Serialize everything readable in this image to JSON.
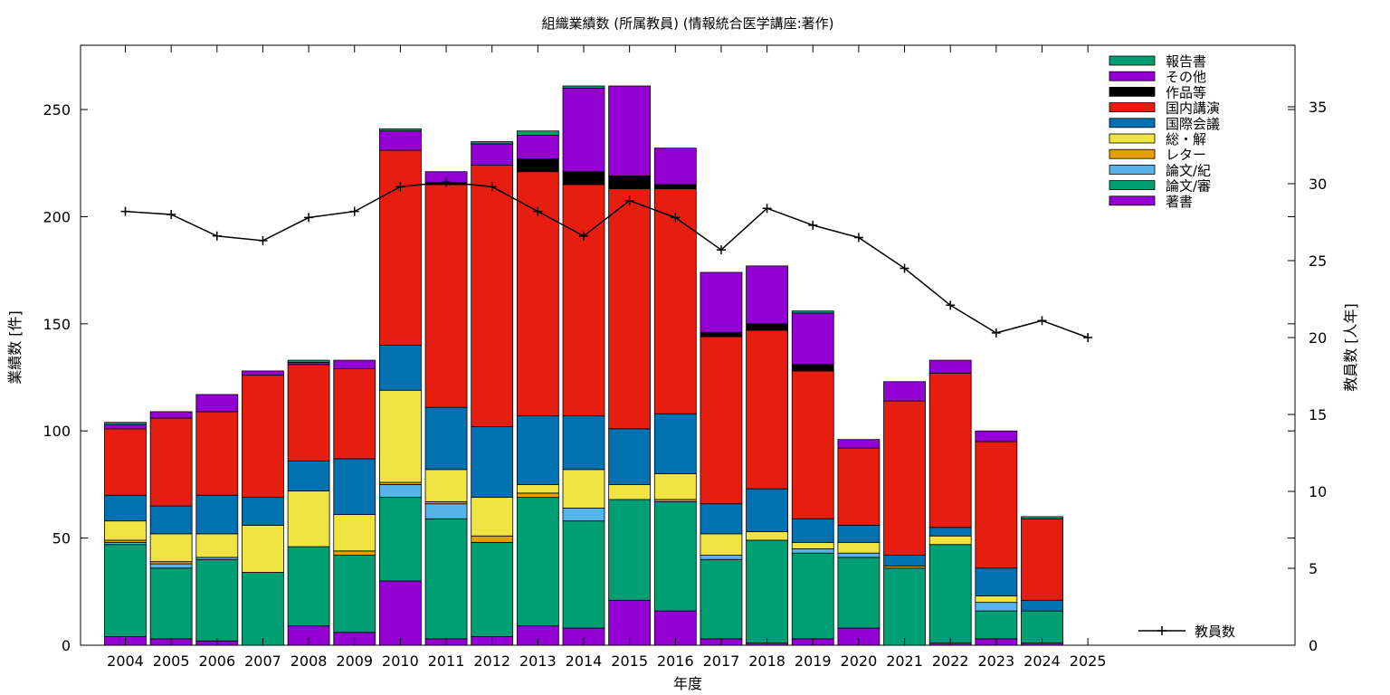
{
  "chart_data": {
    "type": "bar",
    "stacked": true,
    "title": "組織業績数 (所属教員) (情報統合医学講座:著作)",
    "xlabel": "年度",
    "ylabel": "業績数 [件]",
    "y2label": "教員数 [人年]",
    "ylim": [
      0,
      280
    ],
    "y2lim": [
      0,
      39
    ],
    "yticks": [
      0,
      50,
      100,
      150,
      200,
      250
    ],
    "y2ticks": [
      0,
      5,
      10,
      15,
      20,
      25,
      30,
      35
    ],
    "grid": false,
    "legend_position": "top-right",
    "categories": [
      "2004",
      "2005",
      "2006",
      "2007",
      "2008",
      "2009",
      "2010",
      "2011",
      "2012",
      "2013",
      "2014",
      "2015",
      "2016",
      "2017",
      "2018",
      "2019",
      "2020",
      "2021",
      "2022",
      "2023",
      "2024",
      "2025"
    ],
    "series": [
      {
        "name": "著書",
        "color": "#9400d3",
        "values": [
          4,
          3,
          2,
          0,
          9,
          6,
          30,
          3,
          4,
          9,
          8,
          21,
          16,
          3,
          1,
          3,
          8,
          0,
          1,
          3,
          1,
          0
        ]
      },
      {
        "name": "論文/審",
        "color": "#009e73",
        "values": [
          43,
          33,
          38,
          34,
          37,
          36,
          39,
          56,
          44,
          60,
          50,
          47,
          51,
          37,
          48,
          40,
          33,
          36,
          46,
          13,
          15,
          0
        ]
      },
      {
        "name": "論文/紀",
        "color": "#56b4e9",
        "values": [
          1,
          2,
          1,
          0,
          0,
          0,
          6,
          7,
          0,
          0,
          6,
          0,
          0,
          2,
          0,
          2,
          2,
          0,
          0,
          4,
          0,
          0
        ]
      },
      {
        "name": "レター",
        "color": "#e69f00",
        "values": [
          1,
          1,
          0,
          0,
          0,
          2,
          1,
          1,
          3,
          2,
          0,
          0,
          1,
          0,
          0,
          0,
          0,
          1,
          0,
          0,
          0,
          0
        ]
      },
      {
        "name": "総・解",
        "color": "#f0e442",
        "values": [
          9,
          13,
          11,
          22,
          26,
          17,
          43,
          15,
          18,
          4,
          18,
          7,
          12,
          10,
          4,
          3,
          5,
          0,
          4,
          3,
          0,
          0
        ]
      },
      {
        "name": "国際会議",
        "color": "#0072b2",
        "values": [
          12,
          13,
          18,
          13,
          14,
          26,
          21,
          29,
          33,
          32,
          25,
          26,
          28,
          14,
          20,
          11,
          8,
          5,
          4,
          13,
          5,
          0
        ]
      },
      {
        "name": "国内講演",
        "color": "#e51e10",
        "values": [
          31,
          41,
          39,
          57,
          45,
          42,
          91,
          104,
          122,
          114,
          108,
          112,
          105,
          78,
          74,
          69,
          36,
          72,
          72,
          59,
          38,
          0
        ]
      },
      {
        "name": "作品等",
        "color": "#000000",
        "values": [
          0,
          0,
          0,
          0,
          0,
          0,
          0,
          1,
          0,
          6,
          6,
          6,
          2,
          2,
          3,
          3,
          0,
          0,
          0,
          0,
          0,
          0
        ]
      },
      {
        "name": "その他",
        "color": "#9400d3",
        "values": [
          2,
          3,
          8,
          2,
          1,
          4,
          9,
          5,
          10,
          11,
          39,
          42,
          17,
          28,
          27,
          24,
          4,
          9,
          6,
          5,
          0,
          0
        ]
      },
      {
        "name": "報告書",
        "color": "#009e73",
        "values": [
          1,
          0,
          0,
          0,
          1,
          0,
          1,
          0,
          1,
          2,
          1,
          0,
          0,
          0,
          0,
          1,
          0,
          0,
          0,
          0,
          1,
          0
        ]
      }
    ],
    "line_series": {
      "name": "教員数",
      "axis": "y2",
      "color": "#000000",
      "values": [
        28.2,
        28.0,
        26.6,
        26.3,
        27.8,
        28.2,
        29.8,
        30.1,
        29.8,
        28.2,
        26.6,
        28.9,
        27.8,
        25.7,
        28.4,
        27.3,
        26.5,
        24.5,
        22.1,
        20.3,
        21.1,
        20.0
      ]
    }
  }
}
